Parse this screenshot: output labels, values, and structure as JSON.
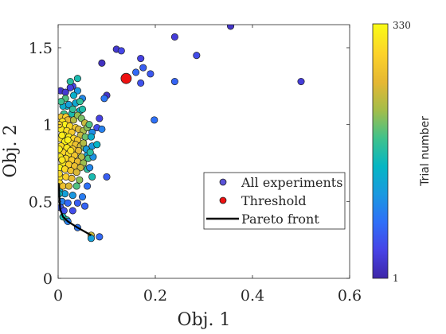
{
  "chart_data": {
    "type": "scatter",
    "xlabel": "Obj. 1",
    "ylabel": "Obj. 2",
    "xlim": [
      0,
      0.6
    ],
    "ylim": [
      0,
      1.65
    ],
    "xticks": [
      "0",
      "0.2",
      "0.4",
      "0.6"
    ],
    "yticks": [
      "0",
      "0.5",
      "1",
      "1.5"
    ],
    "grid": false,
    "legend_position": "lower-right",
    "legend": [
      "All experiments",
      "Threshold",
      "Pareto front"
    ],
    "colorbar": {
      "label": "Trial number",
      "min_label": "1",
      "max_label": "330",
      "range": [
        1,
        330
      ],
      "colormap": [
        "#3e26a8",
        "#4743e6",
        "#2f6ff8",
        "#1a99e0",
        "#05b6c4",
        "#3fc28c",
        "#a3bd4a",
        "#e5b733",
        "#fcd22a",
        "#f9fb15"
      ]
    },
    "threshold": {
      "x": 0.14,
      "y": 1.3,
      "color": "#ee1111"
    },
    "pareto_front": {
      "color": "#000000",
      "points": [
        [
          0.001,
          0.62
        ],
        [
          0.004,
          0.45
        ],
        [
          0.01,
          0.4
        ],
        [
          0.02,
          0.37
        ],
        [
          0.04,
          0.33
        ],
        [
          0.068,
          0.28
        ]
      ]
    },
    "series": [
      {
        "name": "All experiments",
        "points": [
          [
            0.355,
            1.64,
            20
          ],
          [
            0.24,
            1.57,
            30
          ],
          [
            0.12,
            1.49,
            25
          ],
          [
            0.13,
            1.48,
            40
          ],
          [
            0.09,
            1.4,
            15
          ],
          [
            0.17,
            1.43,
            35
          ],
          [
            0.285,
            1.45,
            45
          ],
          [
            0.175,
            1.37,
            60
          ],
          [
            0.19,
            1.33,
            55
          ],
          [
            0.16,
            1.34,
            70
          ],
          [
            0.17,
            1.27,
            50
          ],
          [
            0.24,
            1.28,
            65
          ],
          [
            0.5,
            1.28,
            30
          ],
          [
            0.1,
            1.19,
            20
          ],
          [
            0.095,
            1.17,
            80
          ],
          [
            0.085,
            1.04,
            35
          ],
          [
            0.198,
            1.03,
            75
          ],
          [
            0.08,
            0.98,
            45
          ],
          [
            0.09,
            0.97,
            90
          ],
          [
            0.07,
            0.95,
            100
          ],
          [
            0.07,
            0.86,
            110
          ],
          [
            0.06,
            0.8,
            125
          ],
          [
            0.1,
            0.66,
            60
          ],
          [
            0.085,
            0.27,
            70
          ],
          [
            0.05,
            1.17,
            95
          ],
          [
            0.04,
            1.3,
            160
          ],
          [
            0.03,
            1.25,
            40
          ],
          [
            0.025,
            1.24,
            35
          ],
          [
            0.005,
            1.22,
            20
          ],
          [
            0.015,
            1.21,
            25
          ],
          [
            0.045,
            1.09,
            150
          ],
          [
            0.028,
            1.07,
            160
          ],
          [
            0.018,
            1.12,
            140
          ],
          [
            0.01,
            1.12,
            135
          ],
          [
            0.036,
            1.14,
            130
          ],
          [
            0.022,
            1.13,
            120
          ],
          [
            0.03,
            1.1,
            175
          ],
          [
            0.012,
            1.07,
            180
          ],
          [
            0.006,
            1.05,
            270
          ],
          [
            0.016,
            1.05,
            290
          ],
          [
            0.02,
            1.03,
            260
          ],
          [
            0.032,
            1.03,
            230
          ],
          [
            0.04,
            1.06,
            215
          ],
          [
            0.048,
            1.04,
            205
          ],
          [
            0.009,
            1.02,
            310
          ],
          [
            0.014,
            1.0,
            320
          ],
          [
            0.024,
            0.99,
            300
          ],
          [
            0.036,
            0.98,
            285
          ],
          [
            0.042,
            0.97,
            250
          ],
          [
            0.052,
            0.96,
            225
          ],
          [
            0.006,
            0.97,
            315
          ],
          [
            0.018,
            0.96,
            305
          ],
          [
            0.028,
            0.95,
            280
          ],
          [
            0.046,
            0.93,
            240
          ],
          [
            0.056,
            0.92,
            200
          ],
          [
            0.012,
            0.93,
            325
          ],
          [
            0.022,
            0.92,
            318
          ],
          [
            0.032,
            0.91,
            296
          ],
          [
            0.04,
            0.9,
            276
          ],
          [
            0.004,
            0.91,
            308
          ],
          [
            0.014,
            0.89,
            322
          ],
          [
            0.026,
            0.88,
            300
          ],
          [
            0.036,
            0.87,
            270
          ],
          [
            0.046,
            0.86,
            246
          ],
          [
            0.054,
            0.85,
            212
          ],
          [
            0.006,
            0.86,
            302
          ],
          [
            0.018,
            0.85,
            312
          ],
          [
            0.03,
            0.84,
            288
          ],
          [
            0.042,
            0.83,
            258
          ],
          [
            0.01,
            0.82,
            296
          ],
          [
            0.022,
            0.81,
            306
          ],
          [
            0.034,
            0.8,
            276
          ],
          [
            0.048,
            0.79,
            232
          ],
          [
            0.062,
            0.78,
            188
          ],
          [
            0.004,
            0.79,
            318
          ],
          [
            0.016,
            0.78,
            300
          ],
          [
            0.028,
            0.77,
            284
          ],
          [
            0.04,
            0.76,
            262
          ],
          [
            0.052,
            0.75,
            218
          ],
          [
            0.01,
            0.75,
            312
          ],
          [
            0.022,
            0.74,
            290
          ],
          [
            0.034,
            0.73,
            266
          ],
          [
            0.046,
            0.72,
            244
          ],
          [
            0.06,
            0.71,
            172
          ],
          [
            0.003,
            0.72,
            324
          ],
          [
            0.014,
            0.71,
            300
          ],
          [
            0.026,
            0.7,
            276
          ],
          [
            0.038,
            0.69,
            250
          ],
          [
            0.004,
            0.66,
            310
          ],
          [
            0.016,
            0.66,
            290
          ],
          [
            0.028,
            0.65,
            262
          ],
          [
            0.044,
            0.64,
            210
          ],
          [
            0.07,
            0.66,
            160
          ],
          [
            0.003,
            0.62,
            300
          ],
          [
            0.01,
            0.6,
            270
          ],
          [
            0.022,
            0.6,
            250
          ],
          [
            0.038,
            0.6,
            190
          ],
          [
            0.004,
            0.56,
            140
          ],
          [
            0.014,
            0.55,
            120
          ],
          [
            0.03,
            0.54,
            110
          ],
          [
            0.05,
            0.53,
            85
          ],
          [
            0.008,
            0.5,
            90
          ],
          [
            0.02,
            0.49,
            70
          ],
          [
            0.04,
            0.49,
            60
          ],
          [
            0.005,
            0.46,
            55
          ],
          [
            0.012,
            0.44,
            50
          ],
          [
            0.03,
            0.44,
            45
          ],
          [
            0.01,
            0.4,
            160
          ],
          [
            0.018,
            0.38,
            175
          ],
          [
            0.068,
            0.28,
            240
          ],
          [
            0.068,
            0.26,
            120
          ],
          [
            0.04,
            0.33,
            80
          ],
          [
            0.02,
            0.37,
            90
          ],
          [
            0.055,
            0.47,
            65
          ],
          [
            0.06,
            0.6,
            75
          ],
          [
            0.065,
            0.72,
            95
          ],
          [
            0.072,
            0.79,
            105
          ],
          [
            0.058,
            0.84,
            115
          ],
          [
            0.068,
            0.92,
            135
          ],
          [
            0.08,
            0.87,
            145
          ],
          [
            0.025,
            1.28,
            170
          ],
          [
            0.04,
            1.22,
            110
          ],
          [
            0.015,
            1.17,
            190
          ],
          [
            0.006,
            1.15,
            180
          ],
          [
            0.045,
            1.15,
            175
          ],
          [
            0.032,
            1.19,
            140
          ],
          [
            0.05,
            1.1,
            165
          ],
          [
            0.055,
            1.01,
            240
          ],
          [
            0.06,
            0.98,
            210
          ],
          [
            0.064,
            1.0,
            190
          ],
          [
            0.052,
            0.88,
            230
          ],
          [
            0.066,
            0.82,
            170
          ],
          [
            0.002,
            1.0,
            290
          ],
          [
            0.002,
            0.84,
            320
          ],
          [
            0.002,
            0.68,
            300
          ],
          [
            0.002,
            0.55,
            150
          ],
          [
            0.008,
            0.93,
            318
          ],
          [
            0.008,
            0.77,
            312
          ],
          [
            0.02,
            0.9,
            322
          ],
          [
            0.026,
            0.83,
            306
          ]
        ]
      }
    ]
  }
}
